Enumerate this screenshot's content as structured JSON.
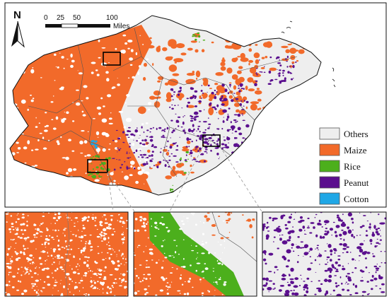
{
  "map": {
    "north_arrow": {
      "label": "N",
      "icon": "north-arrow-icon"
    },
    "scale_bar": {
      "ticks": [
        "0",
        "25",
        "50",
        "100"
      ],
      "unit": "Miles"
    },
    "legend": {
      "items": [
        {
          "label": "Others",
          "color": "#eeeeee"
        },
        {
          "label": "Maize",
          "color": "#f26a2a"
        },
        {
          "label": "Rice",
          "color": "#4caf1c"
        },
        {
          "label": "Peanut",
          "color": "#5b0f8e"
        },
        {
          "label": "Cotton",
          "color": "#1fa7e6"
        }
      ]
    },
    "insets": [
      {
        "name": "inset-maize",
        "dominant": "Maize"
      },
      {
        "name": "inset-rice",
        "dominant": "Rice"
      },
      {
        "name": "inset-peanut",
        "dominant": "Peanut"
      }
    ]
  }
}
